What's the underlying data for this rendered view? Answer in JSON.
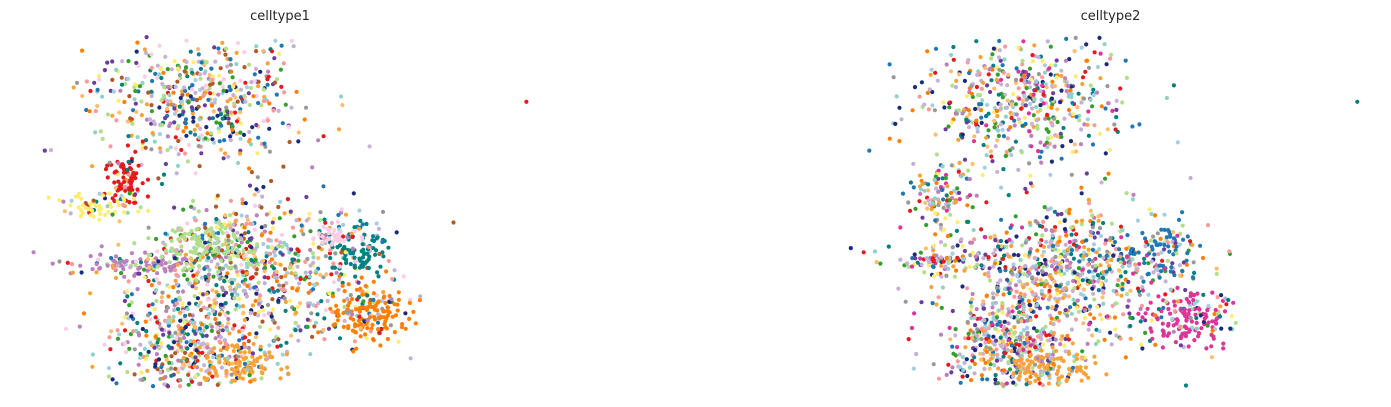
{
  "chart_data": [
    {
      "type": "scatter",
      "title": "celltype1",
      "xlabel": "",
      "ylabel": "",
      "axes_visible": false,
      "grid": false,
      "legend": "none",
      "palette": [
        "#e41a1c",
        "#f8a33a",
        "#a6cee3",
        "#1f78b4",
        "#b2df8a",
        "#33a02c",
        "#fb9a99",
        "#ff7f00",
        "#cab2d6",
        "#6a3d9a",
        "#ffed6f",
        "#bc80bd",
        "#8dd3c7",
        "#fccde5",
        "#008080",
        "#fdbf6f",
        "#b15928",
        "#999999",
        "#1b2a7a",
        "#c5b0d5"
      ],
      "clusters": [
        {
          "name": "top-mix",
          "cx": 0.36,
          "cy": 0.24,
          "sx": 0.09,
          "sy": 0.08,
          "n": 520,
          "dominant": null
        },
        {
          "name": "red",
          "cx": 0.225,
          "cy": 0.45,
          "sx": 0.018,
          "sy": 0.035,
          "n": 90,
          "dominant": "#e41a1c"
        },
        {
          "name": "yellow",
          "cx": 0.17,
          "cy": 0.51,
          "sx": 0.04,
          "sy": 0.02,
          "n": 60,
          "dominant": "#ffed6f"
        },
        {
          "name": "purple-tail",
          "cx": 0.26,
          "cy": 0.65,
          "sx": 0.06,
          "sy": 0.015,
          "n": 110,
          "dominant": "#bc80bd"
        },
        {
          "name": "center-mix",
          "cx": 0.45,
          "cy": 0.67,
          "sx": 0.1,
          "sy": 0.09,
          "n": 700,
          "dominant": null
        },
        {
          "name": "lightgreen",
          "cx": 0.38,
          "cy": 0.6,
          "sx": 0.05,
          "sy": 0.035,
          "n": 140,
          "dominant": "#b2df8a"
        },
        {
          "name": "teal",
          "cx": 0.64,
          "cy": 0.62,
          "sx": 0.03,
          "sy": 0.04,
          "n": 110,
          "dominant": "#008080"
        },
        {
          "name": "pink",
          "cx": 0.6,
          "cy": 0.57,
          "sx": 0.02,
          "sy": 0.02,
          "n": 40,
          "dominant": "#fccde5"
        },
        {
          "name": "orange",
          "cx": 0.66,
          "cy": 0.77,
          "sx": 0.04,
          "sy": 0.04,
          "n": 170,
          "dominant": "#ff7f00"
        },
        {
          "name": "bottom-mix",
          "cx": 0.33,
          "cy": 0.85,
          "sx": 0.06,
          "sy": 0.06,
          "n": 380,
          "dominant": null
        },
        {
          "name": "bottom-peach",
          "cx": 0.43,
          "cy": 0.9,
          "sx": 0.04,
          "sy": 0.025,
          "n": 110,
          "dominant": "#f8a33a"
        }
      ],
      "outliers": [
        {
          "x": 0.94,
          "y": 0.25,
          "color": "#e41a1c"
        },
        {
          "x": 0.08,
          "y": 0.37,
          "color": "#6a3d9a"
        },
        {
          "x": 0.06,
          "y": 0.62,
          "color": "#bc80bd"
        },
        {
          "x": 0.66,
          "y": 0.36,
          "color": "#cab2d6"
        },
        {
          "x": 0.13,
          "y": 0.67,
          "color": "#f8a33a"
        },
        {
          "x": 0.15,
          "y": 0.77,
          "color": "#ff7f00"
        }
      ]
    },
    {
      "type": "scatter",
      "title": "celltype2",
      "xlabel": "",
      "ylabel": "",
      "axes_visible": false,
      "grid": false,
      "legend": "none",
      "palette": [
        "#e41a1c",
        "#f8a33a",
        "#a6cee3",
        "#1f78b4",
        "#b2df8a",
        "#33a02c",
        "#fb9a99",
        "#ff7f00",
        "#cab2d6",
        "#6a3d9a",
        "#ffed6f",
        "#bc80bd",
        "#8dd3c7",
        "#008080",
        "#dd3497",
        "#fdbf6f",
        "#1b2a7a",
        "#999999",
        "#c5b0d5"
      ],
      "clusters": [
        {
          "name": "top-mix",
          "cx": 0.34,
          "cy": 0.25,
          "sx": 0.09,
          "sy": 0.08,
          "n": 520,
          "dominant": null
        },
        {
          "name": "left-mix",
          "cx": 0.2,
          "cy": 0.48,
          "sx": 0.03,
          "sy": 0.04,
          "n": 110,
          "dominant": null
        },
        {
          "name": "tail-mix",
          "cx": 0.2,
          "cy": 0.64,
          "sx": 0.05,
          "sy": 0.015,
          "n": 90,
          "dominant": null
        },
        {
          "name": "center-mix",
          "cx": 0.42,
          "cy": 0.67,
          "sx": 0.1,
          "sy": 0.09,
          "n": 760,
          "dominant": null
        },
        {
          "name": "teal",
          "cx": 0.6,
          "cy": 0.61,
          "sx": 0.03,
          "sy": 0.035,
          "n": 80,
          "dominant": "#1f78b4"
        },
        {
          "name": "magenta",
          "cx": 0.64,
          "cy": 0.78,
          "sx": 0.04,
          "sy": 0.035,
          "n": 160,
          "dominant": "#dd3497"
        },
        {
          "name": "bottom-mix",
          "cx": 0.31,
          "cy": 0.85,
          "sx": 0.06,
          "sy": 0.06,
          "n": 380,
          "dominant": null
        },
        {
          "name": "bottom-peach",
          "cx": 0.39,
          "cy": 0.9,
          "sx": 0.04,
          "sy": 0.025,
          "n": 110,
          "dominant": "#f8a33a"
        }
      ],
      "outliers": [
        {
          "x": 0.94,
          "y": 0.25,
          "color": "#008080"
        },
        {
          "x": 0.07,
          "y": 0.37,
          "color": "#1f78b4"
        },
        {
          "x": 0.06,
          "y": 0.62,
          "color": "#e41a1c"
        },
        {
          "x": 0.62,
          "y": 0.35,
          "color": "#a6cee3"
        },
        {
          "x": 0.54,
          "y": 0.49,
          "color": "#8dd3c7"
        },
        {
          "x": 0.15,
          "y": 0.77,
          "color": "#dd3497"
        }
      ]
    }
  ]
}
